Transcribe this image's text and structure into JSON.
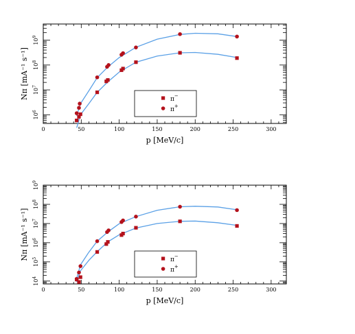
{
  "chart_data": [
    {
      "type": "scatter",
      "title": "",
      "xlabel": "p [MeV/c]",
      "ylabel": "Nπ [mA⁻¹ s⁻¹]",
      "y_scale": "log",
      "xlim": [
        0,
        320
      ],
      "ylim_log10": [
        5.65,
        9.65
      ],
      "x_ticks": [
        0,
        50,
        100,
        150,
        200,
        250,
        300
      ],
      "y_ticks": [
        {
          "exp": 6,
          "base": "10",
          "pow": "6"
        },
        {
          "exp": 7,
          "base": "10",
          "pow": "7"
        },
        {
          "exp": 8,
          "base": "10",
          "pow": "8"
        },
        {
          "exp": 9,
          "base": "10",
          "pow": "9"
        }
      ],
      "legend": [
        {
          "label": "π⁻",
          "marker": "square",
          "base": "π",
          "sup": "−"
        },
        {
          "label": "π⁺",
          "marker": "circle",
          "base": "π",
          "sup": "+"
        }
      ],
      "legend_position": "bottom-center",
      "series": [
        {
          "marker": "square",
          "x": [
            44,
            47,
            49,
            71,
            83,
            85,
            103,
            105,
            122,
            180,
            255
          ],
          "y": [
            590000.0,
            830000.0,
            1050000.0,
            8000000.0,
            22000000.0,
            25000000.0,
            62000000.0,
            72000000.0,
            130000000.0,
            310000000.0,
            190000000.0
          ]
        },
        {
          "marker": "circle",
          "x": [
            44,
            47,
            48,
            71,
            84,
            86,
            103,
            105,
            122,
            180,
            255
          ],
          "y": [
            1150000.0,
            1900000.0,
            2800000.0,
            32000000.0,
            85000000.0,
            100000000.0,
            260000000.0,
            300000000.0,
            510000000.0,
            1750000000.0,
            1400000000.0
          ]
        }
      ],
      "fits": [
        {
          "x": [
            44,
            49,
            60,
            71,
            85,
            100,
            122,
            150,
            180,
            200,
            230,
            255
          ],
          "y": [
            300000.0,
            1000000.0,
            2800000.0,
            8000000.0,
            21000000.0,
            52000000.0,
            130000000.0,
            230000000.0,
            310000000.0,
            320000000.0,
            270000000.0,
            200000000.0
          ]
        },
        {
          "x": [
            44,
            49,
            60,
            71,
            85,
            100,
            122,
            150,
            180,
            200,
            230,
            255
          ],
          "y": [
            900000.0,
            2800000.0,
            9200000.0,
            31000000.0,
            83000000.0,
            200000000.0,
            520000000.0,
            1100000000.0,
            1700000000.0,
            1900000000.0,
            1800000000.0,
            1400000000.0
          ]
        }
      ]
    },
    {
      "type": "scatter",
      "title": "",
      "xlabel": "p [MeV/c]",
      "ylabel": "Nπ [mA⁻¹ s⁻¹]",
      "y_scale": "log",
      "xlim": [
        0,
        320
      ],
      "ylim_log10": [
        3.85,
        9.0
      ],
      "x_ticks": [
        0,
        50,
        100,
        150,
        200,
        250,
        300
      ],
      "y_ticks": [
        {
          "exp": 4,
          "base": "10",
          "pow": "4"
        },
        {
          "exp": 5,
          "base": "10",
          "pow": "5"
        },
        {
          "exp": 6,
          "base": "10",
          "pow": "6"
        },
        {
          "exp": 7,
          "base": "10",
          "pow": "7"
        },
        {
          "exp": 8,
          "base": "10",
          "pow": "8"
        },
        {
          "exp": 9,
          "base": "10",
          "pow": "9"
        }
      ],
      "legend": [
        {
          "label": "π⁻",
          "marker": "square",
          "base": "π",
          "sup": "−"
        },
        {
          "label": "π⁺",
          "marker": "circle",
          "base": "π",
          "sup": "+"
        }
      ],
      "legend_position": "bottom-center",
      "series": [
        {
          "marker": "square",
          "x": [
            44,
            47,
            49,
            71,
            83,
            85,
            103,
            105,
            122,
            180,
            255
          ],
          "y": [
            12000.0,
            9000.0,
            16000.0,
            330000.0,
            850000.0,
            1100000.0,
            2500000.0,
            3000000.0,
            6000000.0,
            13000000.0,
            7500000.0
          ]
        },
        {
          "marker": "circle",
          "x": [
            44,
            47,
            49,
            71,
            84,
            86,
            103,
            105,
            122,
            180,
            255
          ],
          "y": [
            13000.0,
            28000.0,
            60000.0,
            1200000.0,
            3600000.0,
            4400000.0,
            12000000.0,
            14500000.0,
            23000000.0,
            75000000.0,
            50000000.0
          ]
        }
      ],
      "fits": [
        {
          "x": [
            44,
            49,
            60,
            71,
            85,
            100,
            122,
            150,
            180,
            200,
            230,
            255
          ],
          "y": [
            9000.0,
            34000.0,
            120000.0,
            340000.0,
            1100000.0,
            2600000.0,
            5800000.0,
            10000000.0,
            13000000.0,
            13500000.0,
            11000000.0,
            8000000.0
          ]
        },
        {
          "x": [
            44,
            49,
            60,
            71,
            85,
            100,
            122,
            150,
            180,
            200,
            230,
            255
          ],
          "y": [
            14000.0,
            70000.0,
            320000.0,
            1200000.0,
            3600000.0,
            9800000.0,
            23000000.0,
            49000000.0,
            75000000.0,
            80000000.0,
            73000000.0,
            52000000.0
          ]
        }
      ]
    }
  ],
  "colors": {
    "marker": "#b4121c",
    "fit": "#5aa0e6",
    "axes": "#000000"
  }
}
